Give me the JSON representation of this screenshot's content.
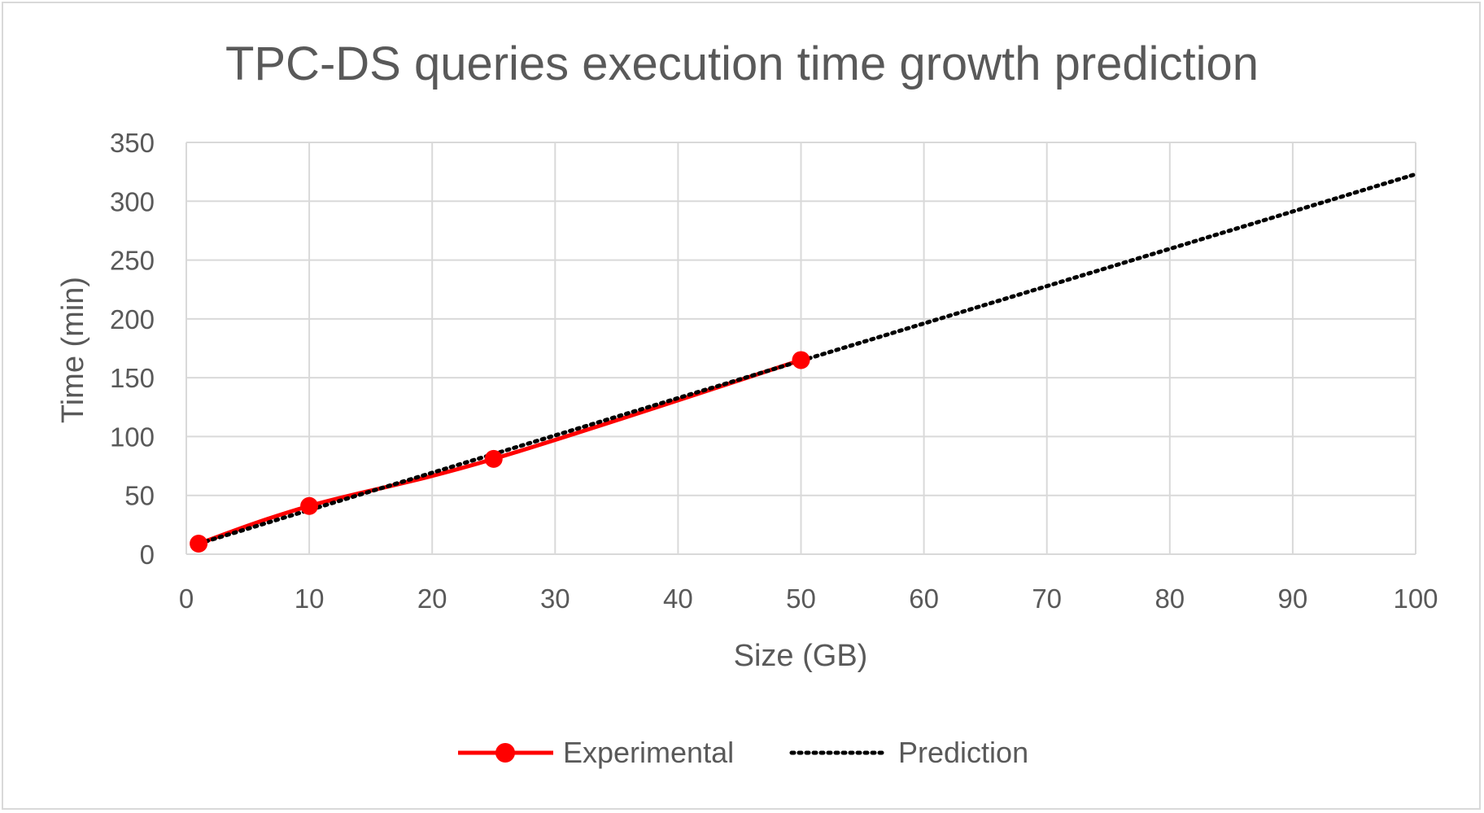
{
  "chart_data": {
    "type": "line",
    "title": "TPC-DS queries execution time growth prediction",
    "xlabel": "Size (GB)",
    "ylabel": "Time (min)",
    "xlim": [
      0,
      100
    ],
    "ylim": [
      0,
      350
    ],
    "xticks": [
      0,
      10,
      20,
      30,
      40,
      50,
      60,
      70,
      80,
      90,
      100
    ],
    "yticks": [
      0,
      50,
      100,
      150,
      200,
      250,
      300,
      350
    ],
    "grid": true,
    "legend_position": "bottom",
    "series": [
      {
        "name": "Experimental",
        "style": "solid with markers",
        "color": "#ff0000",
        "x": [
          1,
          10,
          25,
          50
        ],
        "y": [
          9,
          41,
          81,
          165
        ]
      },
      {
        "name": "Prediction",
        "style": "dotted",
        "color": "#000000",
        "x": [
          1,
          100
        ],
        "y": [
          9,
          323
        ]
      }
    ]
  }
}
